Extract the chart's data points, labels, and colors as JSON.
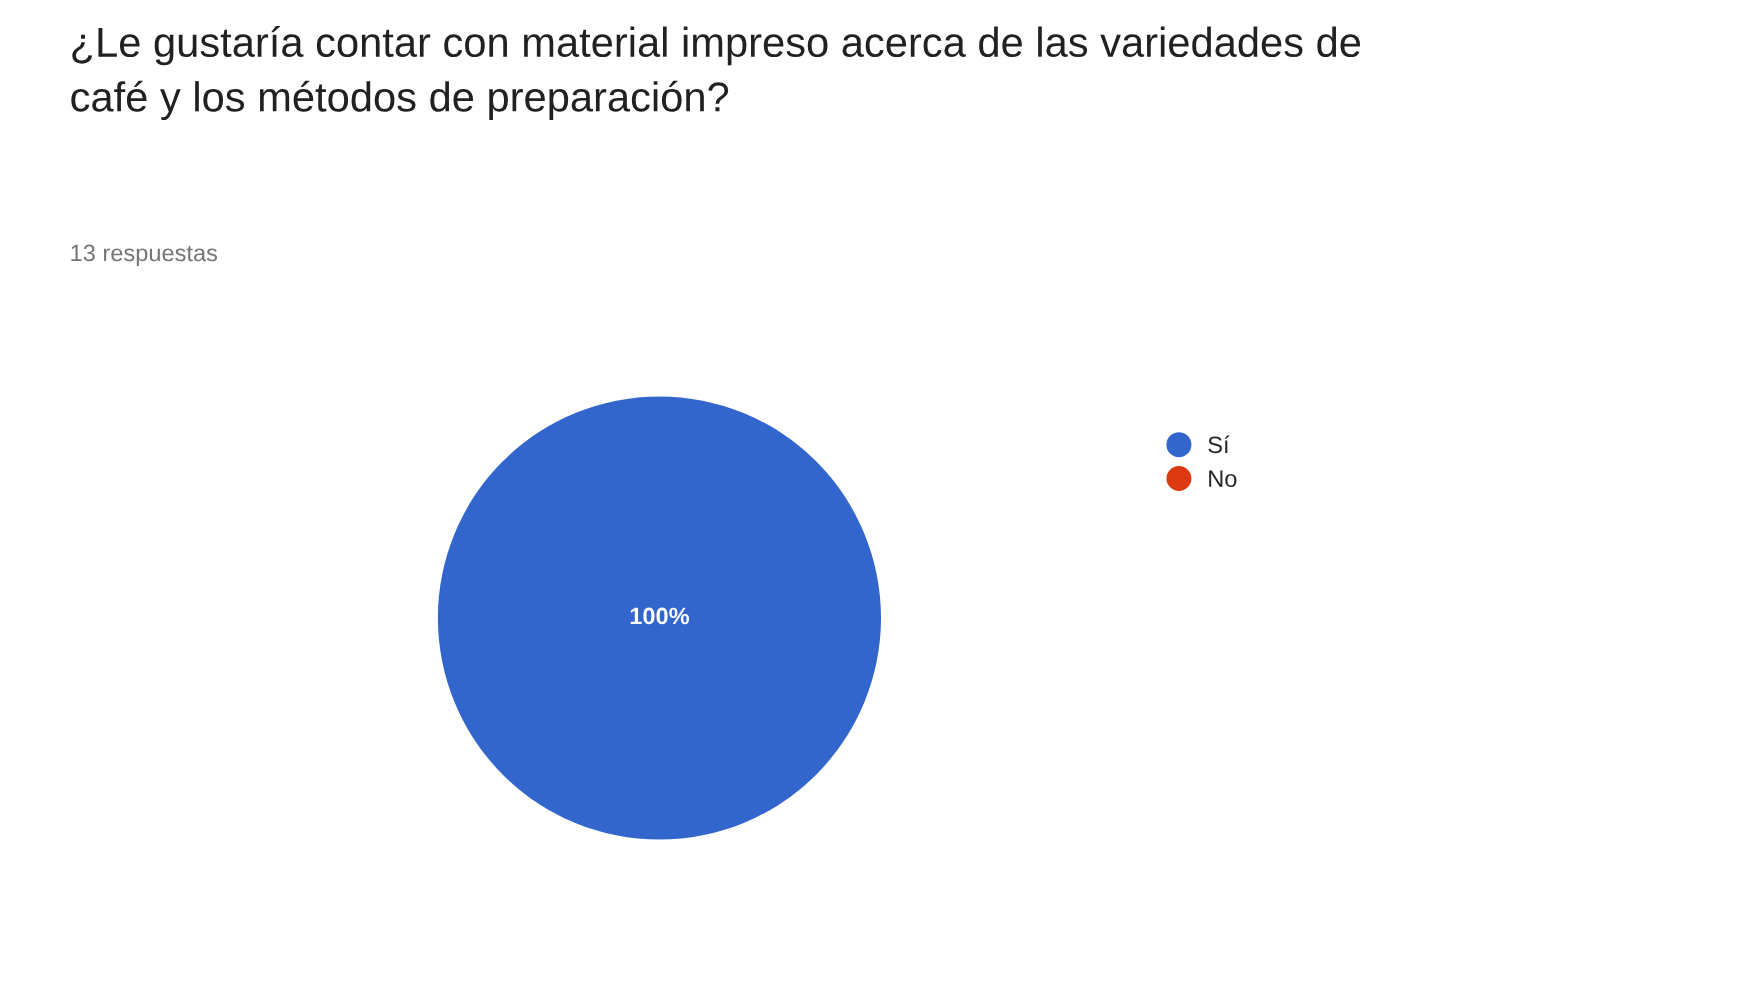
{
  "chart_data": {
    "type": "pie",
    "title": "¿Le gustaría contar con material impreso acerca de las variedades de\ncafé y los métodos de preparación?",
    "subtitle": "13 respuestas",
    "categories": [
      "Sí",
      "No"
    ],
    "values": [
      100,
      0
    ],
    "colors": [
      "#3366cc",
      "#dc3912"
    ],
    "value_labels": [
      "100%",
      null
    ],
    "legend": "right"
  }
}
